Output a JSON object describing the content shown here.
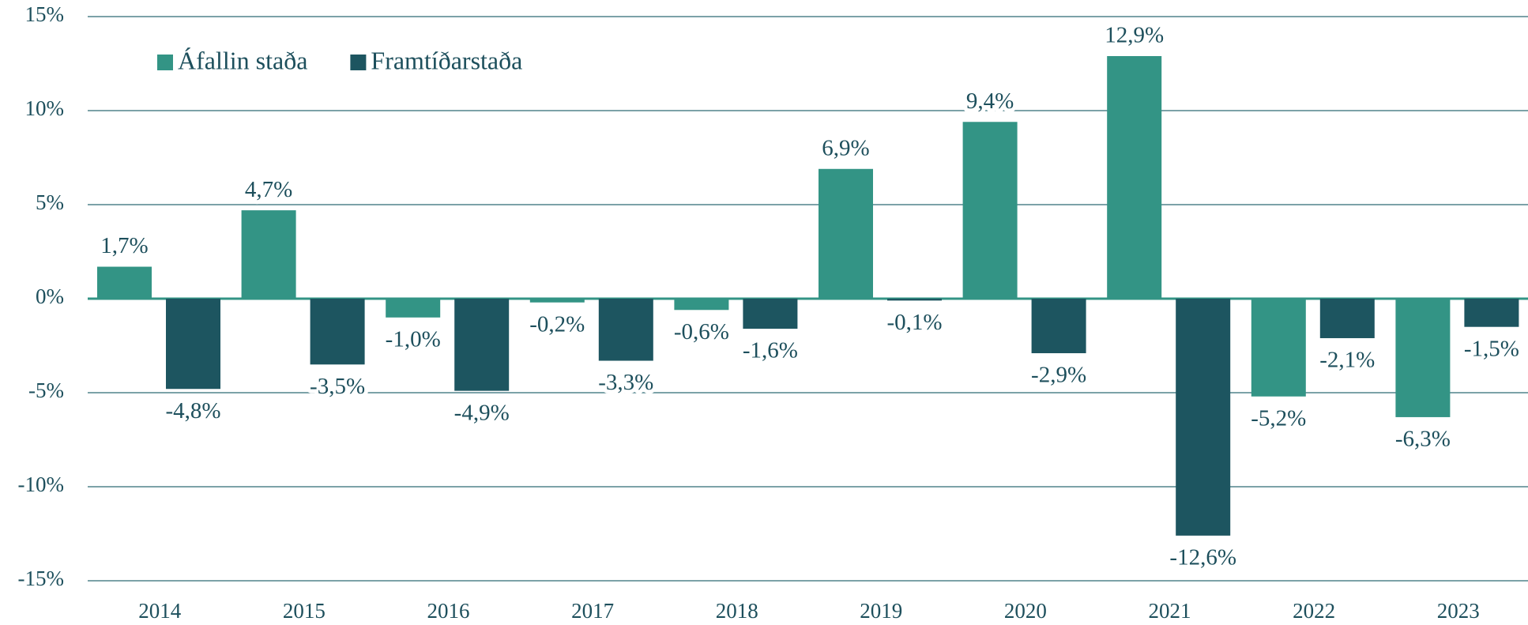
{
  "chart_data": {
    "type": "bar",
    "categories": [
      "2014",
      "2015",
      "2016",
      "2017",
      "2018",
      "2019",
      "2020",
      "2021",
      "2022",
      "2023"
    ],
    "series": [
      {
        "name": "Áfallin staða",
        "color": "#339485",
        "values": [
          1.7,
          4.7,
          -1.0,
          -0.2,
          -0.6,
          6.9,
          9.4,
          12.9,
          -5.2,
          -6.3
        ],
        "value_labels": [
          "1,7%",
          "4,7%",
          "-1,0%",
          "-0,2%",
          "-0,6%",
          "6,9%",
          "9,4%",
          "12,9%",
          "-5,2%",
          "-6,3%"
        ]
      },
      {
        "name": "Framtíðarstaða",
        "color": "#1d5560",
        "values": [
          -4.8,
          -3.5,
          -4.9,
          -3.3,
          -1.6,
          -0.1,
          -2.9,
          -12.6,
          -2.1,
          -1.5
        ],
        "value_labels": [
          "-4,8%",
          "-3,5%",
          "-4,9%",
          "-3,3%",
          "-1,6%",
          "-0,1%",
          "-2,9%",
          "-12,6%",
          "-2,1%",
          "-1,5%"
        ]
      }
    ],
    "ylim": [
      -15,
      15
    ],
    "yticks": [
      {
        "value": -15,
        "label": "-15%"
      },
      {
        "value": -10,
        "label": "-10%"
      },
      {
        "value": -5,
        "label": "-5%"
      },
      {
        "value": 0,
        "label": "0%"
      },
      {
        "value": 5,
        "label": "5%"
      },
      {
        "value": 10,
        "label": "10%"
      },
      {
        "value": 15,
        "label": "15%"
      }
    ],
    "grid": true,
    "legend": "top-left"
  }
}
